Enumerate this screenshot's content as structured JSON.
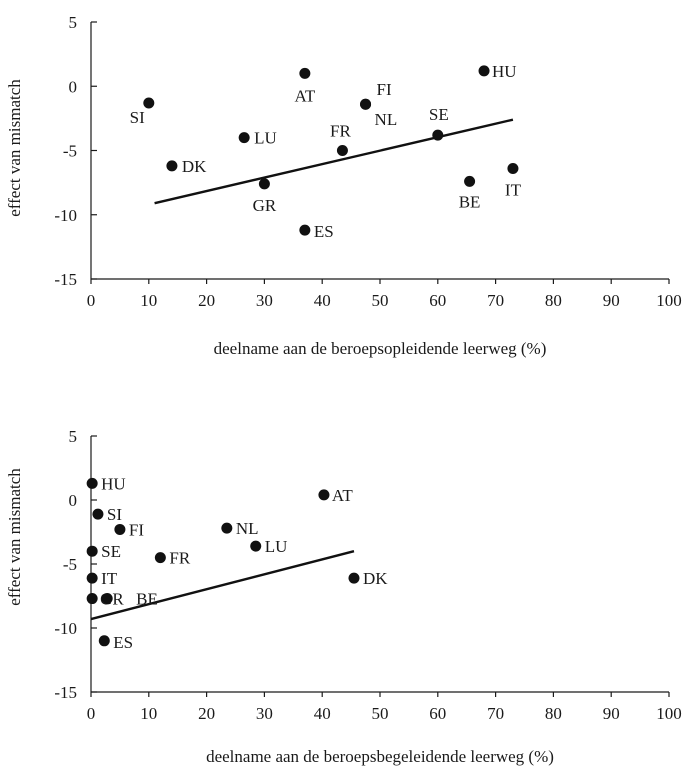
{
  "colors": {
    "ink": "#111111",
    "background": "#ffffff"
  },
  "chart_data": [
    {
      "type": "scatter",
      "xlabel": "deelname aan de beroepsopleidende leerweg (%)",
      "ylabel": "effect van mismatch",
      "xlim": [
        0,
        100
      ],
      "ylim": [
        -15,
        5
      ],
      "xticks": [
        "0",
        "10",
        "20",
        "30",
        "40",
        "50",
        "60",
        "70",
        "80",
        "90",
        "100"
      ],
      "yticks": [
        "5",
        "0",
        "-5",
        "-10",
        "-15"
      ],
      "grid": false,
      "points": [
        {
          "label": "SI",
          "x": 10,
          "y": -1.3
        },
        {
          "label": "DK",
          "x": 14,
          "y": -6.2
        },
        {
          "label": "LU",
          "x": 26.5,
          "y": -4.0
        },
        {
          "label": "GR",
          "x": 30,
          "y": -7.6
        },
        {
          "label": "AT",
          "x": 37,
          "y": 1.0
        },
        {
          "label": "ES",
          "x": 37,
          "y": -11.2
        },
        {
          "label": "FR",
          "x": 43.5,
          "y": -5.0
        },
        {
          "label": "FI",
          "x": 47.5,
          "y": -1.4
        },
        {
          "label": "NL",
          "x": 47.5,
          "y": -1.4
        },
        {
          "label": "SE",
          "x": 60,
          "y": -3.8
        },
        {
          "label": "BE",
          "x": 65.5,
          "y": -7.4
        },
        {
          "label": "HU",
          "x": 68,
          "y": 1.2
        },
        {
          "label": "IT",
          "x": 73,
          "y": -6.4
        }
      ],
      "trendline": {
        "x": [
          11,
          73
        ],
        "y": [
          -9.1,
          -2.6
        ]
      }
    },
    {
      "type": "scatter",
      "xlabel": "deelname aan de beroepsbegeleidende leerweg (%)",
      "ylabel": "effect van mismatch",
      "xlim": [
        0,
        100
      ],
      "ylim": [
        -15,
        5
      ],
      "xticks": [
        "0",
        "10",
        "20",
        "30",
        "40",
        "50",
        "60",
        "70",
        "80",
        "90",
        "100"
      ],
      "yticks": [
        "5",
        "0",
        "-5",
        "-10",
        "-15"
      ],
      "grid": false,
      "points": [
        {
          "label": "HU",
          "x": 0.2,
          "y": 1.3
        },
        {
          "label": "SI",
          "x": 1.2,
          "y": -1.1
        },
        {
          "label": "FI",
          "x": 5,
          "y": -2.3
        },
        {
          "label": "SE",
          "x": 0.2,
          "y": -4.0
        },
        {
          "label": "IT",
          "x": 0.2,
          "y": -6.1
        },
        {
          "label": "GR",
          "x": 0.2,
          "y": -7.7
        },
        {
          "label": "BE",
          "x": 2.8,
          "y": -7.7
        },
        {
          "label": "ES",
          "x": 2.3,
          "y": -11.0
        },
        {
          "label": "FR",
          "x": 12,
          "y": -4.5
        },
        {
          "label": "NL",
          "x": 23.5,
          "y": -2.2
        },
        {
          "label": "LU",
          "x": 28.5,
          "y": -3.6
        },
        {
          "label": "AT",
          "x": 40.3,
          "y": 0.4
        },
        {
          "label": "DK",
          "x": 45.5,
          "y": -6.1
        }
      ],
      "trendline": {
        "x": [
          0,
          45.5
        ],
        "y": [
          -9.3,
          -4.0
        ]
      }
    }
  ]
}
